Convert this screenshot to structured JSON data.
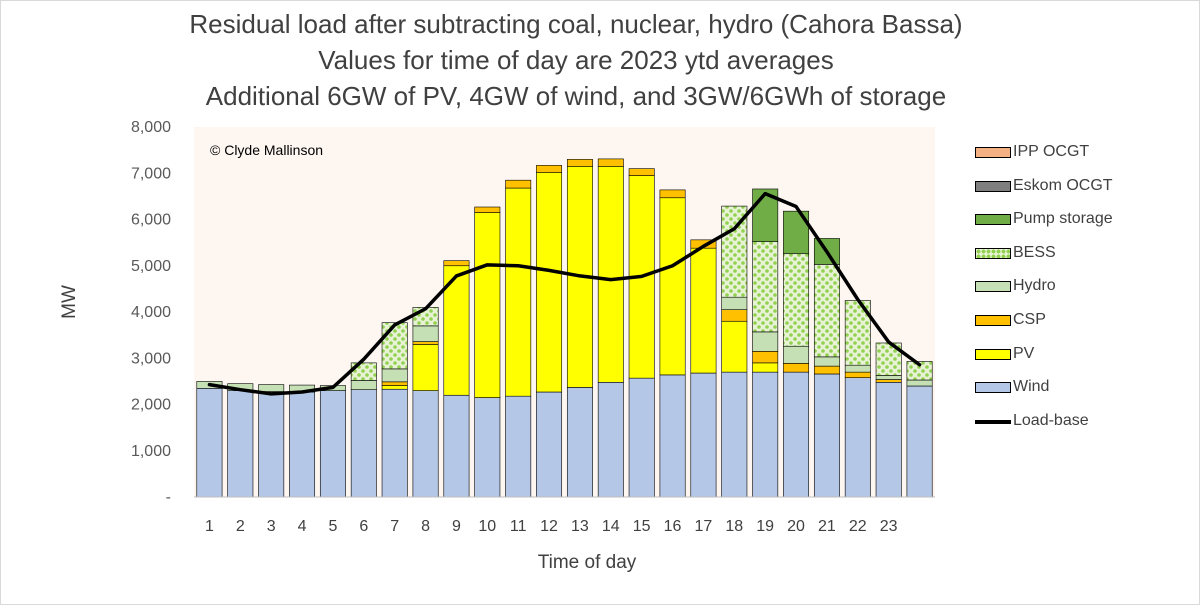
{
  "title_lines": [
    "Residual load after subtracting coal, nuclear, hydro (Cahora Bassa)",
    "Values for time of day are 2023 ytd averages",
    "Additional 6GW of PV, 4GW of wind, and 3GW/6GWh of storage"
  ],
  "chart_data": {
    "type": "bar",
    "stacked": true,
    "title": "Residual load after subtracting coal, nuclear, hydro (Cahora Bassa) / Values for time of day are 2023 ytd averages / Additional 6GW of PV, 4GW of wind, and 3GW/6GWh of storage",
    "xlabel": "Time of day",
    "ylabel": "MW",
    "ylim": [
      0,
      8000
    ],
    "y_ticks": [
      0,
      1000,
      2000,
      3000,
      4000,
      5000,
      6000,
      7000,
      8000
    ],
    "y_tick_labels": [
      "-",
      "1,000",
      "2,000",
      "3,000",
      "4,000",
      "5,000",
      "6,000",
      "7,000",
      "8,000"
    ],
    "categories": [
      "1",
      "2",
      "3",
      "4",
      "5",
      "6",
      "7",
      "8",
      "9",
      "10",
      "11",
      "12",
      "13",
      "14",
      "15",
      "16",
      "17",
      "18",
      "19",
      "20",
      "21",
      "22",
      "23",
      ""
    ],
    "grid": false,
    "legend_position": "right",
    "annotation": "© Clyde Mallinson",
    "plot_background": "#fdf6f1",
    "series": [
      {
        "name": "Wind",
        "color": "#b4c7e7",
        "pattern": "solid",
        "values": [
          2350,
          2300,
          2280,
          2270,
          2300,
          2320,
          2330,
          2300,
          2200,
          2150,
          2180,
          2270,
          2370,
          2480,
          2570,
          2640,
          2680,
          2700,
          2700,
          2700,
          2660,
          2580,
          2480,
          2400
        ]
      },
      {
        "name": "PV",
        "color": "#ffff00",
        "pattern": "solid",
        "values": [
          0,
          0,
          0,
          0,
          0,
          0,
          80,
          1000,
          2800,
          4000,
          4500,
          4750,
          4780,
          4670,
          4380,
          3830,
          2700,
          1100,
          200,
          0,
          0,
          0,
          0,
          0
        ]
      },
      {
        "name": "CSP",
        "color": "#ffc000",
        "pattern": "solid",
        "values": [
          0,
          0,
          0,
          0,
          0,
          0,
          80,
          60,
          110,
          120,
          170,
          150,
          150,
          160,
          150,
          170,
          180,
          250,
          250,
          190,
          170,
          120,
          60,
          0
        ]
      },
      {
        "name": "Hydro",
        "color": "#c5e0b4",
        "pattern": "solid",
        "values": [
          150,
          150,
          150,
          150,
          110,
          200,
          280,
          340,
          0,
          0,
          0,
          0,
          0,
          0,
          0,
          0,
          0,
          270,
          420,
          370,
          200,
          150,
          90,
          130
        ]
      },
      {
        "name": "BESS",
        "color": "#92d050",
        "pattern": "checker",
        "values": [
          0,
          0,
          0,
          0,
          0,
          380,
          1000,
          400,
          0,
          0,
          0,
          0,
          0,
          0,
          0,
          0,
          0,
          1970,
          1950,
          2000,
          2000,
          1400,
          700,
          400
        ]
      },
      {
        "name": "Pump storage",
        "color": "#70ad47",
        "pattern": "solid",
        "values": [
          0,
          0,
          0,
          0,
          0,
          0,
          0,
          0,
          0,
          0,
          0,
          0,
          0,
          0,
          0,
          0,
          0,
          0,
          1140,
          920,
          560,
          0,
          0,
          0
        ]
      },
      {
        "name": "Eskom OCGT",
        "color": "#7f7f7f",
        "pattern": "solid",
        "values": [
          0,
          0,
          0,
          0,
          0,
          0,
          0,
          0,
          0,
          0,
          0,
          0,
          0,
          0,
          0,
          0,
          0,
          0,
          0,
          0,
          0,
          0,
          0,
          0
        ]
      },
      {
        "name": "IPP OCGT",
        "color": "#f4b183",
        "pattern": "solid",
        "values": [
          0,
          0,
          0,
          0,
          0,
          0,
          0,
          0,
          0,
          0,
          0,
          0,
          0,
          0,
          0,
          0,
          0,
          0,
          0,
          0,
          0,
          0,
          0,
          0
        ]
      },
      {
        "name": "Load-base",
        "type": "line",
        "color": "#000000",
        "values": [
          2430,
          2320,
          2230,
          2270,
          2370,
          2980,
          3720,
          4070,
          4780,
          5020,
          5000,
          4900,
          4780,
          4700,
          4770,
          5000,
          5420,
          5800,
          6560,
          6280,
          5300,
          4270,
          3350,
          2860
        ]
      }
    ]
  }
}
